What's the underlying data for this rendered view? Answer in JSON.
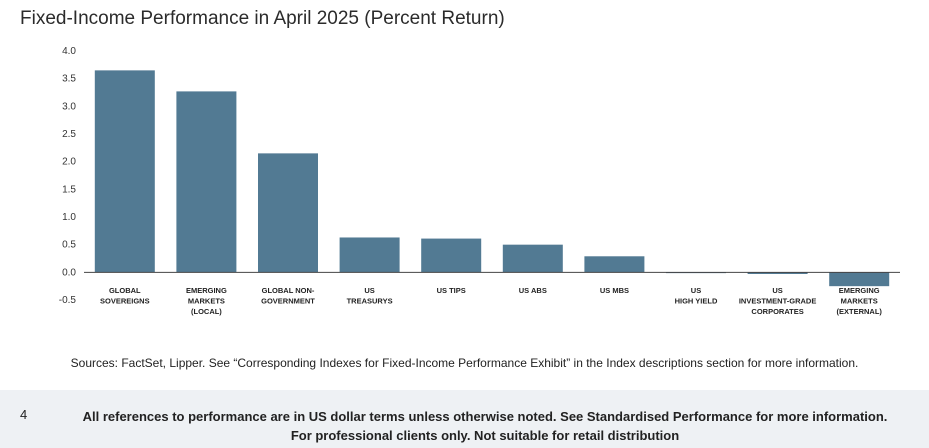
{
  "title": "Fixed-Income Performance in April 2025 (Percent Return)",
  "chart_data": {
    "type": "bar",
    "categories": [
      [
        "GLOBAL",
        "SOVEREIGNS"
      ],
      [
        "EMERGING",
        "MARKETS",
        "(LOCAL)"
      ],
      [
        "GLOBAL NON-",
        "GOVERNMENT"
      ],
      [
        "US",
        "TREASURYS"
      ],
      [
        "US TIPS"
      ],
      [
        "US ABS"
      ],
      [
        "US MBS"
      ],
      [
        "US",
        "HIGH YIELD"
      ],
      [
        "US",
        "INVESTMENT-GRADE",
        "CORPORATES"
      ],
      [
        "EMERGING",
        "MARKETS",
        "(EXTERNAL)"
      ]
    ],
    "values": [
      3.65,
      3.27,
      2.15,
      0.63,
      0.61,
      0.5,
      0.29,
      -0.01,
      -0.03,
      -0.25
    ],
    "ylim": [
      -0.5,
      4.0
    ],
    "yticks": [
      "4.0",
      "3.5",
      "3.0",
      "2.5",
      "2.0",
      "1.5",
      "1.0",
      "0.5",
      "0.0",
      "-0.5"
    ],
    "bar_color": "#527a93",
    "grid": false,
    "legend": "none"
  },
  "sources": "Sources: FactSet, Lipper. See “Corresponding Indexes for Fixed-Income Performance Exhibit” in the Index descriptions section for more information.",
  "footer": {
    "page_number": "4",
    "line1": "All references to performance are in US dollar terms unless otherwise noted. See Standardised Performance for more information.",
    "line2": "For professional clients only. Not suitable for retail distribution"
  }
}
